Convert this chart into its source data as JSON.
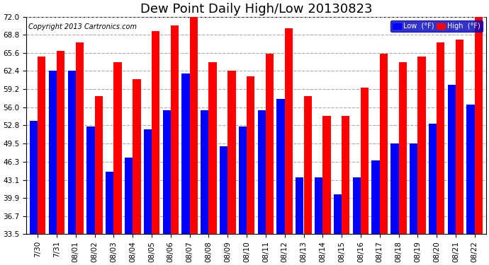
{
  "title": "Dew Point Daily High/Low 20130823",
  "copyright": "Copyright 2013 Cartronics.com",
  "dates": [
    "7/30",
    "7/31",
    "08/01",
    "08/02",
    "08/03",
    "08/04",
    "08/05",
    "08/06",
    "08/07",
    "08/08",
    "08/09",
    "08/10",
    "08/11",
    "08/12",
    "08/13",
    "08/14",
    "08/15",
    "08/16",
    "08/17",
    "08/18",
    "08/19",
    "08/20",
    "08/21",
    "08/22"
  ],
  "high_values": [
    65.0,
    66.0,
    67.5,
    58.0,
    64.0,
    61.0,
    69.5,
    70.5,
    72.5,
    64.0,
    62.5,
    61.5,
    65.5,
    70.0,
    58.0,
    54.5,
    54.5,
    59.5,
    65.5,
    64.0,
    65.0,
    67.5,
    68.0,
    72.0
  ],
  "low_values": [
    53.5,
    62.5,
    62.5,
    52.5,
    44.5,
    47.0,
    52.0,
    55.5,
    62.0,
    55.5,
    49.0,
    52.5,
    55.5,
    57.5,
    43.5,
    43.5,
    40.5,
    43.5,
    46.5,
    49.5,
    49.5,
    53.0,
    60.0,
    56.5
  ],
  "bar_width": 0.42,
  "ymin": 33.5,
  "ylim": [
    33.5,
    72.0
  ],
  "yticks": [
    33.5,
    36.7,
    39.9,
    43.1,
    46.3,
    49.5,
    52.8,
    56.0,
    59.2,
    62.4,
    65.6,
    68.8,
    72.0
  ],
  "low_color": "#0000ff",
  "high_color": "#ff0000",
  "background_color": "#ffffff",
  "plot_bg_color": "#ffffff",
  "grid_color": "#aaaaaa",
  "title_fontsize": 13,
  "tick_fontsize": 7.5,
  "legend_low_label": "Low  (°F)",
  "legend_high_label": "High  (°F)"
}
